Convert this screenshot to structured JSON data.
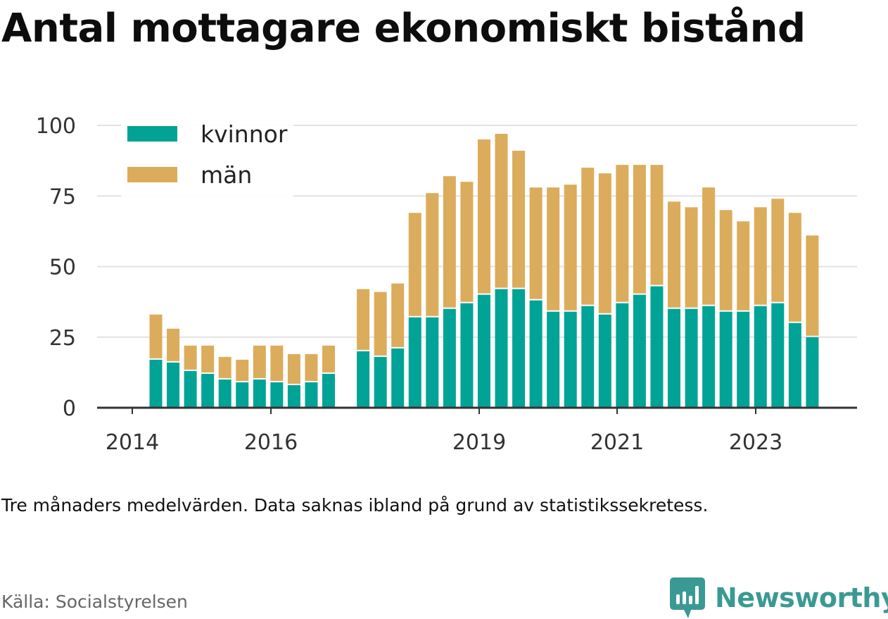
{
  "title": "Antal mottagare ekonomiskt bistånd",
  "note": "Tre månaders medelvärden. Data saknas ibland på grund av statistikssekretess.",
  "source": "Källa: Socialstyrelsen",
  "brand": {
    "name": "Newsworthy",
    "color": "#3a9a93",
    "icon": "chart-logo-icon"
  },
  "colors": {
    "kvinnor": "#00a395",
    "man": "#dbac5b",
    "grid": "#e3e3e3",
    "axis": "#333333"
  },
  "chart_data": {
    "type": "bar",
    "stacked": true,
    "ylim": [
      0,
      100
    ],
    "yticks": [
      "0",
      "25",
      "50",
      "75",
      "100"
    ],
    "xticks": [
      "2014",
      "2016",
      "2019",
      "2021",
      "2023"
    ],
    "legend_position": "top-left",
    "grid": true,
    "series": [
      {
        "name": "kvinnor",
        "values": [
          17,
          16,
          13,
          12,
          10,
          9,
          10,
          9,
          8,
          9,
          12,
          null,
          20,
          18,
          21,
          32,
          32,
          35,
          37,
          40,
          42,
          42,
          38,
          34,
          34,
          36,
          33,
          37,
          40,
          43,
          35,
          35,
          36,
          34,
          34,
          36,
          37,
          30,
          25
        ]
      },
      {
        "name": "män",
        "values": [
          16,
          12,
          9,
          10,
          8,
          8,
          12,
          13,
          11,
          10,
          10,
          null,
          22,
          23,
          23,
          37,
          44,
          47,
          43,
          55,
          55,
          49,
          40,
          44,
          45,
          49,
          50,
          49,
          46,
          43,
          38,
          36,
          42,
          36,
          32,
          35,
          37,
          39,
          36
        ]
      }
    ],
    "totals": [
      33,
      28,
      22,
      22,
      18,
      17,
      22,
      22,
      19,
      19,
      22,
      null,
      42,
      41,
      44,
      69,
      76,
      82,
      80,
      95,
      97,
      91,
      78,
      78,
      79,
      85,
      83,
      86,
      86,
      86,
      73,
      71,
      78,
      70,
      66,
      71,
      74,
      69,
      61
    ]
  }
}
